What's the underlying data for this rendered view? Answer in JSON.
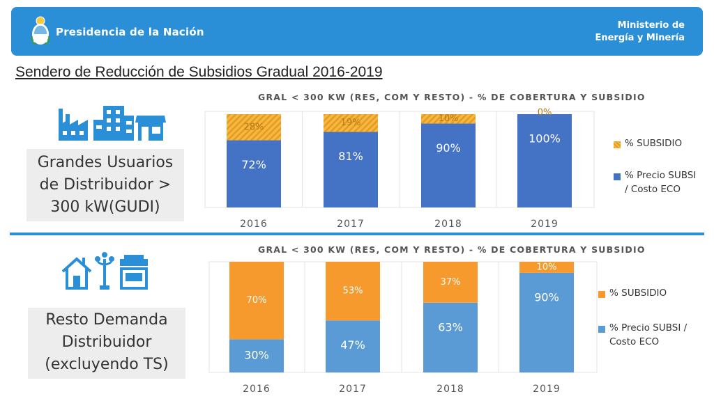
{
  "header": {
    "presidencia": "Presidencia de la Nación",
    "ministerio_line1": "Ministerio de",
    "ministerio_line2": "Energía y Minería"
  },
  "main_title": "Sendero de Reducción de Subsidios Gradual 2016-2019",
  "segments": {
    "top": {
      "label_lines": [
        "Grandes Usuarios",
        "de Distribuidor >",
        "300 kW(GUDI)"
      ],
      "icons": [
        "factory-icon",
        "buildings-icon",
        "store-icon"
      ]
    },
    "bottom": {
      "label_lines": [
        "Resto Demanda",
        "Distribuidor",
        "(excluyendo TS)"
      ],
      "icons": [
        "house-icon",
        "streetlight-icon",
        "shop-icon"
      ]
    }
  },
  "colors": {
    "banner": "#2a8fd6",
    "precio_top": "#4472c4",
    "subsidio_top": "#f4b942",
    "subsidio_hatch": "#e89a1f",
    "precio_bottom": "#5b9bd5",
    "subsidio_bottom": "#f79a2e",
    "icon": "#2a8fd6"
  },
  "chart_data": [
    {
      "type": "bar",
      "stacked": true,
      "title": "GRAL < 300 KW (RES, COM Y RESTO) - % DE COBERTURA Y SUBSIDIO",
      "categories": [
        "2016",
        "2017",
        "2018",
        "2019"
      ],
      "series": [
        {
          "name": "% Precio SUBSI / Costo ECO",
          "values": [
            72,
            81,
            90,
            100
          ],
          "labels": [
            "72%",
            "81%",
            "90%",
            "100%"
          ]
        },
        {
          "name": "% SUBSIDIO",
          "values": [
            28,
            19,
            10,
            0
          ],
          "labels": [
            "28%",
            "19%",
            "10%",
            "0%"
          ]
        }
      ],
      "legend_lines": [
        [
          "% SUBSIDIO"
        ],
        [
          "% Precio SUBSI",
          "/ Costo ECO"
        ]
      ],
      "ylim": [
        0,
        100
      ],
      "grid": true,
      "legend_position": "right"
    },
    {
      "type": "bar",
      "stacked": true,
      "title": "GRAL < 300 KW (RES, COM Y RESTO) - % DE COBERTURA Y SUBSIDIO",
      "categories": [
        "2016",
        "2017",
        "2018",
        "2019"
      ],
      "series": [
        {
          "name": "% Precio SUBSI / Costo ECO",
          "values": [
            30,
            47,
            63,
            90
          ],
          "labels": [
            "30%",
            "47%",
            "63%",
            "90%"
          ]
        },
        {
          "name": "% SUBSIDIO",
          "values": [
            70,
            53,
            37,
            10
          ],
          "labels": [
            "70%",
            "53%",
            "37%",
            "10%"
          ]
        }
      ],
      "legend_lines": [
        [
          "% SUBSIDIO"
        ],
        [
          "% Precio SUBSI /",
          "Costo ECO"
        ]
      ],
      "ylim": [
        0,
        100
      ],
      "grid": true,
      "legend_position": "right"
    }
  ]
}
